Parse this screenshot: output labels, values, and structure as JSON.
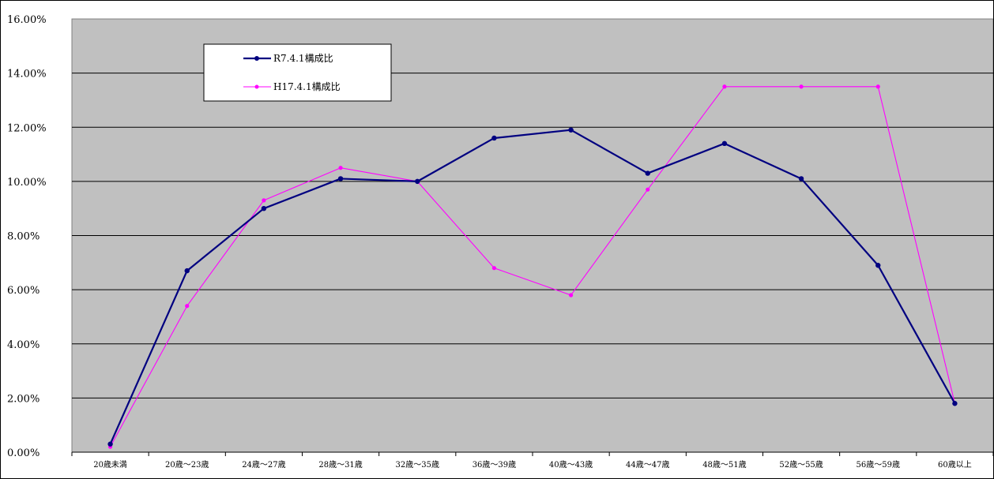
{
  "chart_data": {
    "type": "line",
    "categories": [
      "20歳未満",
      "20歳～23歳",
      "24歳～27歳",
      "28歳～31歳",
      "32歳～35歳",
      "36歳～39歳",
      "40歳～43歳",
      "44歳～47歳",
      "48歳～51歳",
      "52歳～55歳",
      "56歳～59歳",
      "60歳以上"
    ],
    "y_ticks": [
      "0.00%",
      "2.00%",
      "4.00%",
      "6.00%",
      "8.00%",
      "10.00%",
      "12.00%",
      "14.00%",
      "16.00%"
    ],
    "ylim": [
      0,
      16
    ],
    "grid": true,
    "legend_position": "top-left",
    "background_color": "#c0c0c0",
    "series": [
      {
        "name": "R7.4.1構成比",
        "color": "#000080",
        "values": [
          0.3,
          6.7,
          9.0,
          10.1,
          10.0,
          11.6,
          11.9,
          10.3,
          11.4,
          10.1,
          6.9,
          1.8
        ]
      },
      {
        "name": "H17.4.1構成比",
        "color": "#ff00ff",
        "values": [
          0.2,
          5.4,
          9.3,
          10.5,
          10.0,
          6.8,
          5.8,
          9.7,
          13.5,
          13.5,
          13.5,
          1.8
        ]
      }
    ]
  }
}
